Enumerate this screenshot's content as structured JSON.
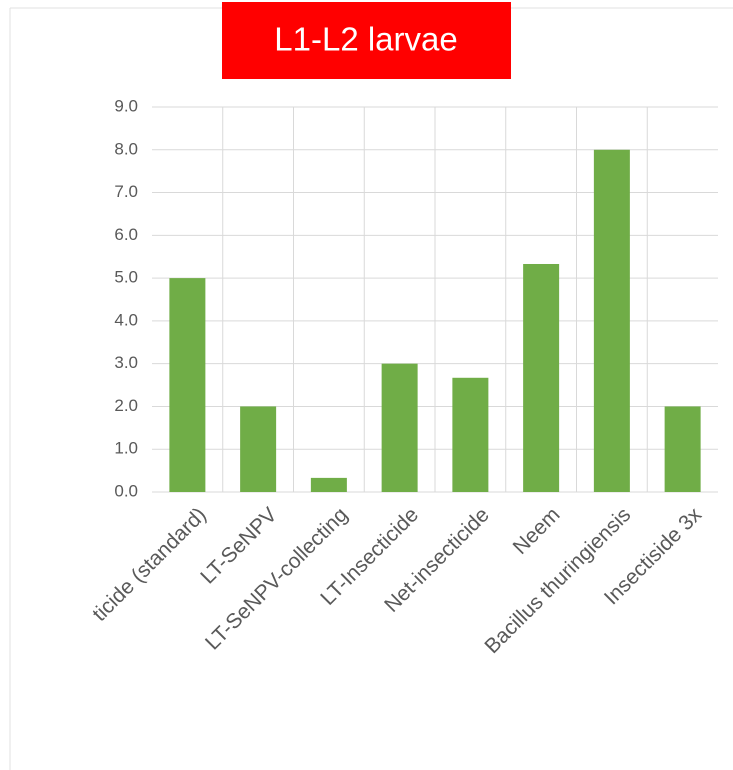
{
  "chart_data": {
    "type": "bar",
    "title": "L1-L2 larvae",
    "categories": [
      "ticide (standard)",
      "LT-SeNPV",
      "LT-SeNPV-collecting",
      "LT-Insecticide",
      "Net-insecticide",
      "Neem",
      "Bacillus thuringiensis",
      "Insectiside 3x"
    ],
    "values": [
      5.0,
      2.0,
      0.33,
      3.0,
      2.67,
      5.33,
      8.0,
      2.0
    ],
    "color": "#70ad47",
    "ylim": [
      0,
      9
    ],
    "yticks": [
      {
        "value": 0,
        "label": "0.0"
      },
      {
        "value": 1,
        "label": "1.0"
      },
      {
        "value": 2,
        "label": "2.0"
      },
      {
        "value": 3,
        "label": "3.0"
      },
      {
        "value": 4,
        "label": "4.0"
      },
      {
        "value": 5,
        "label": "5.0"
      },
      {
        "value": 6,
        "label": "6.0"
      },
      {
        "value": 7,
        "label": "7.0"
      },
      {
        "value": 8,
        "label": "8.0"
      },
      {
        "value": 9,
        "label": "9.0"
      }
    ],
    "grid": true
  }
}
